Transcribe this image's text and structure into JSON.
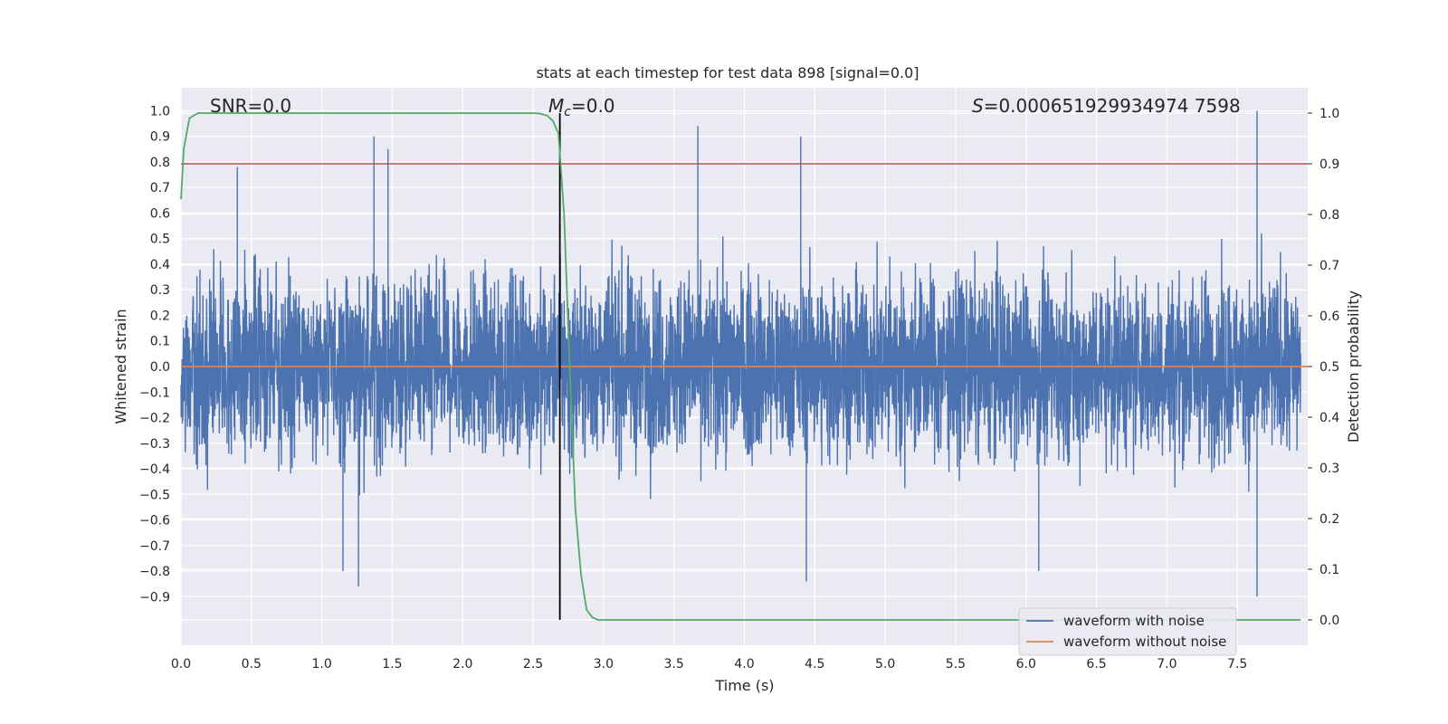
{
  "chart_data": {
    "type": "line",
    "title": "stats at each timestep for test data 898 [signal=0.0]",
    "xlabel": "Time (s)",
    "ylabel_left": "Whitened strain",
    "ylabel_right": "Detection probability",
    "xlim": [
      0.0,
      8.0
    ],
    "ylim_left": [
      -1.09,
      1.09
    ],
    "ylim_right": [
      -0.05,
      1.05
    ],
    "x_ticks": [
      "0.0",
      "0.5",
      "1.0",
      "1.5",
      "2.0",
      "2.5",
      "3.0",
      "3.5",
      "4.0",
      "4.5",
      "5.0",
      "5.5",
      "6.0",
      "6.5",
      "7.0",
      "7.5"
    ],
    "y_left_ticks": [
      "1.0",
      "0.9",
      "0.8",
      "0.7",
      "0.6",
      "0.5",
      "0.4",
      "0.3",
      "0.2",
      "0.1",
      "0.0",
      "−0.1",
      "−0.2",
      "−0.3",
      "−0.4",
      "−0.5",
      "−0.6",
      "−0.7",
      "−0.8",
      "−0.9"
    ],
    "y_right_ticks": [
      "1.0",
      "0.9",
      "0.8",
      "0.7",
      "0.6",
      "0.5",
      "0.4",
      "0.3",
      "0.2",
      "0.1",
      "0.0"
    ],
    "grid": true,
    "legend_position": "bottom-right",
    "annotations": {
      "snr": "SNR=0.0",
      "mc_symbol": "M",
      "mc_sub": "c",
      "mc_value": "=0.0",
      "s_symbol": "S",
      "s_value": "=0.000651929934974 7598"
    },
    "series": [
      {
        "name": "waveform with noise",
        "color": "#4c72b0",
        "axis": "left",
        "note_envelope_peaks": [
          {
            "x": 0.4,
            "y": 0.78
          },
          {
            "x": 1.37,
            "y": 0.9
          },
          {
            "x": 1.47,
            "y": 0.85
          },
          {
            "x": 3.67,
            "y": 0.94
          },
          {
            "x": 4.4,
            "y": 0.9
          },
          {
            "x": 7.64,
            "y": 1.0
          },
          {
            "x": 1.26,
            "y": -0.86
          },
          {
            "x": 1.15,
            "y": -0.8
          },
          {
            "x": 4.44,
            "y": -0.84
          },
          {
            "x": 6.09,
            "y": -0.8
          },
          {
            "x": 7.64,
            "y": -0.9
          }
        ]
      },
      {
        "name": "waveform without noise",
        "color": "#dd8452",
        "axis": "left",
        "x": [
          0.0,
          8.0
        ],
        "y": [
          0.0,
          0.0
        ]
      },
      {
        "name": "detection probability",
        "color": "#55a868",
        "axis": "right",
        "x": [
          0.0,
          0.02,
          0.06,
          0.12,
          0.2,
          0.5,
          1.0,
          1.5,
          2.0,
          2.4,
          2.5,
          2.55,
          2.6,
          2.64,
          2.68,
          2.72,
          2.76,
          2.8,
          2.84,
          2.88,
          2.92,
          2.96,
          3.0,
          4.0,
          5.0,
          6.0,
          7.0,
          7.95
        ],
        "y": [
          0.83,
          0.93,
          0.99,
          1.0,
          1.0,
          1.0,
          1.0,
          1.0,
          1.0,
          1.0,
          1.0,
          0.999,
          0.995,
          0.985,
          0.96,
          0.8,
          0.5,
          0.22,
          0.09,
          0.02,
          0.005,
          0.0,
          0.0,
          0.0,
          0.0,
          0.0,
          0.0,
          0.0
        ]
      }
    ],
    "threshold_line": {
      "color": "#c44e52",
      "axis": "right",
      "y": 0.9
    },
    "vertical_marker": {
      "color": "#000000",
      "x": 2.69
    }
  },
  "legend": {
    "items": [
      {
        "label": "waveform with noise",
        "color": "#4c72b0"
      },
      {
        "label": "waveform without noise",
        "color": "#dd8452"
      }
    ]
  }
}
